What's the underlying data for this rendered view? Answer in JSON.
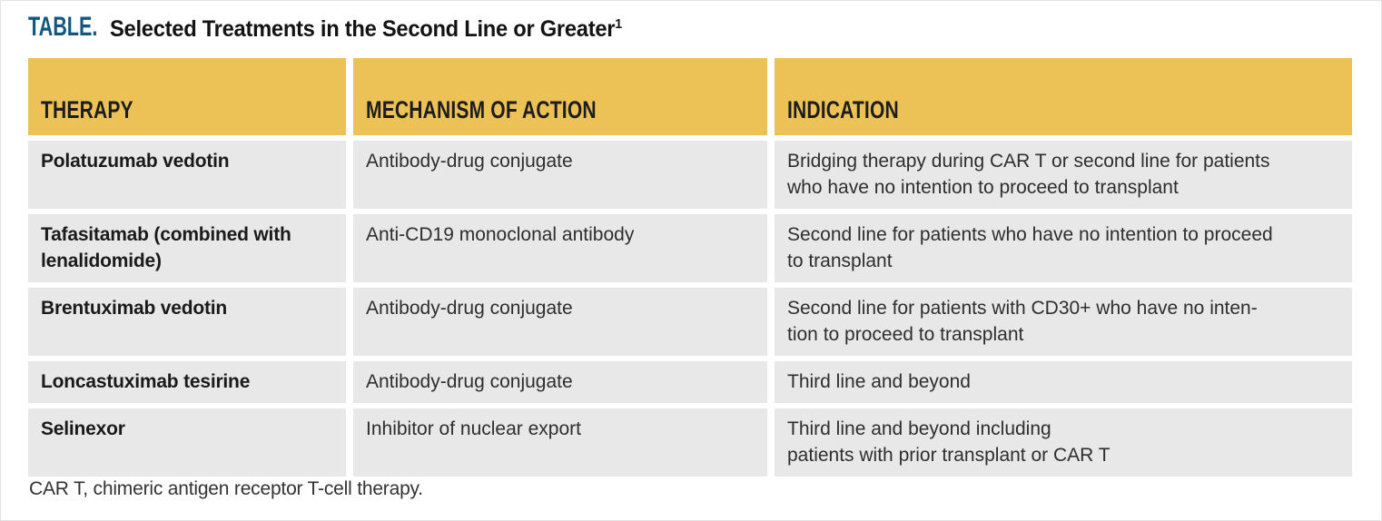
{
  "title": {
    "prefix": "TABLE.",
    "text": "Selected Treatments in the Second Line or Greater",
    "superscript": "1"
  },
  "table": {
    "columns": [
      "THERAPY",
      "MECHANISM OF ACTION",
      "INDICATION"
    ],
    "rows": [
      {
        "therapy": "Polatuzumab vedotin",
        "mechanism": "Antibody-drug conjugate",
        "indication": "Bridging therapy during CAR T or second line for patients\nwho have no intention to proceed to transplant"
      },
      {
        "therapy": "Tafasitamab (combined with\nlenalidomide)",
        "mechanism": "Anti-CD19 monoclonal antibody",
        "indication": "Second line for patients who have no intention to proceed\nto transplant"
      },
      {
        "therapy": "Brentuximab vedotin",
        "mechanism": "Antibody-drug conjugate",
        "indication": "Second line for patients with CD30+ who have no inten-\ntion to proceed to transplant"
      },
      {
        "therapy": "Loncastuximab tesirine",
        "mechanism": "Antibody-drug conjugate",
        "indication": "Third line and beyond"
      },
      {
        "therapy": "Selinexor",
        "mechanism": "Inhibitor of nuclear export",
        "indication": "Third line and beyond including\npatients with prior transplant or CAR T"
      }
    ]
  },
  "footnote": "CAR T, chimeric antigen receptor T-cell therapy.",
  "colors": {
    "header_bg": "#ecc156",
    "row_bg": "#e8e8e9",
    "title_accent": "#15567f"
  }
}
